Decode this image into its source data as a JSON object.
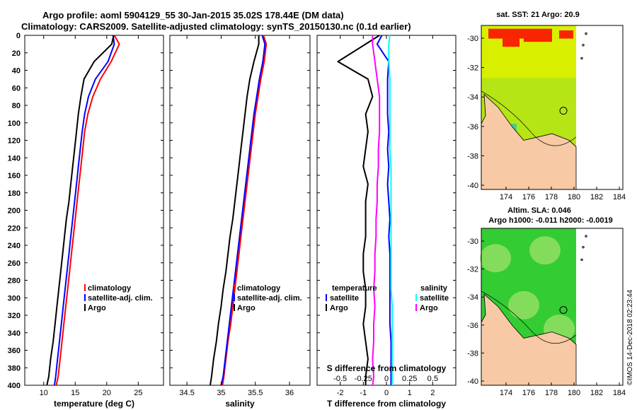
{
  "title_line1": "Argo profile: aoml 5904129_55 30-Jan-2015 35.02S 178.44E (DM data)",
  "title_line2": "Climatology: CARS2009. Satellite-adjusted climatology: synTS_20150130.nc (0.1d earlier)",
  "colors": {
    "climatology": "#ff0000",
    "satellite": "#0000ff",
    "argo": "#000000",
    "salinity_satellite": "#00ffff",
    "salinity_argo": "#ff00ff",
    "land": "#f7c9a4",
    "sst_bg": "#d8f000",
    "sla_bg": "#33cc33"
  },
  "chart_data": [
    {
      "type": "line",
      "id": "temperature",
      "xlabel": "temperature (deg C)",
      "ylabel": "depth",
      "xlim": [
        7,
        29
      ],
      "ylim": [
        0,
        400
      ],
      "y_reversed": true,
      "xticks": [
        "10",
        "15",
        "20",
        "25"
      ],
      "yticks": [
        "0",
        "20",
        "40",
        "60",
        "80",
        "100",
        "120",
        "140",
        "160",
        "180",
        "200",
        "220",
        "240",
        "260",
        "280",
        "300",
        "320",
        "340",
        "360",
        "380",
        "400"
      ],
      "legend": [
        "climatology",
        "satellite-adj. clim.",
        "Argo"
      ],
      "series": [
        {
          "name": "climatology",
          "color_key": "climatology",
          "x": [
            21.2,
            22.0,
            20.7,
            19.0,
            17.8,
            17.0,
            16.5,
            16.2,
            15.9,
            15.6,
            15.3,
            15.0,
            14.7,
            14.4,
            14.1,
            13.8,
            13.5,
            13.2,
            12.9,
            12.6,
            12.3,
            12.0
          ],
          "y": [
            0,
            10,
            30,
            50,
            70,
            90,
            110,
            130,
            150,
            170,
            190,
            210,
            230,
            250,
            270,
            290,
            310,
            330,
            350,
            370,
            390,
            400
          ]
        },
        {
          "name": "satellite-adj. clim.",
          "color_key": "satellite",
          "x": [
            21.0,
            21.2,
            20.2,
            18.2,
            17.1,
            16.5,
            16.1,
            15.8,
            15.5,
            15.2,
            14.9,
            14.6,
            14.3,
            14.0,
            13.7,
            13.4,
            13.1,
            12.8,
            12.5,
            12.2,
            11.9,
            11.7
          ],
          "y": [
            0,
            10,
            30,
            50,
            70,
            90,
            110,
            130,
            150,
            170,
            190,
            210,
            230,
            250,
            270,
            290,
            310,
            330,
            350,
            370,
            390,
            400
          ]
        },
        {
          "name": "Argo",
          "color_key": "argo",
          "x": [
            21.1,
            20.8,
            18.0,
            16.4,
            15.9,
            15.5,
            15.2,
            14.9,
            14.6,
            14.3,
            14.0,
            13.6,
            13.3,
            13.0,
            12.7,
            12.4,
            12.1,
            11.8,
            11.5,
            11.1,
            10.8,
            10.5
          ],
          "y": [
            0,
            10,
            30,
            50,
            70,
            90,
            110,
            130,
            150,
            170,
            190,
            210,
            230,
            250,
            270,
            290,
            310,
            330,
            350,
            370,
            390,
            400
          ]
        }
      ]
    },
    {
      "type": "line",
      "id": "salinity",
      "xlabel": "salinity",
      "xlim": [
        34.25,
        36.3
      ],
      "ylim": [
        0,
        400
      ],
      "y_reversed": true,
      "xticks": [
        "34.5",
        "35",
        "35.5",
        "36"
      ],
      "legend": [
        "climatology",
        "satellite-adj. clim.",
        "Argo"
      ],
      "series": [
        {
          "name": "climatology",
          "color_key": "climatology",
          "x": [
            35.62,
            35.66,
            35.63,
            35.58,
            35.54,
            35.5,
            35.47,
            35.44,
            35.41,
            35.38,
            35.35,
            35.32,
            35.29,
            35.26,
            35.23,
            35.2,
            35.17,
            35.14,
            35.1,
            35.07,
            35.04,
            35.02
          ],
          "y": [
            0,
            10,
            30,
            50,
            70,
            90,
            110,
            130,
            150,
            170,
            190,
            210,
            230,
            250,
            270,
            290,
            310,
            330,
            350,
            370,
            390,
            400
          ]
        },
        {
          "name": "satellite-adj. clim.",
          "color_key": "satellite",
          "x": [
            35.6,
            35.64,
            35.61,
            35.56,
            35.52,
            35.48,
            35.45,
            35.42,
            35.39,
            35.36,
            35.33,
            35.3,
            35.27,
            35.24,
            35.21,
            35.18,
            35.15,
            35.12,
            35.09,
            35.06,
            35.03,
            35.0
          ],
          "y": [
            0,
            10,
            30,
            50,
            70,
            90,
            110,
            130,
            150,
            170,
            190,
            210,
            230,
            250,
            270,
            290,
            310,
            330,
            350,
            370,
            390,
            400
          ]
        },
        {
          "name": "Argo",
          "color_key": "argo",
          "x": [
            35.55,
            35.55,
            35.48,
            35.42,
            35.38,
            35.35,
            35.32,
            35.29,
            35.26,
            35.23,
            35.2,
            35.17,
            35.13,
            35.1,
            35.07,
            35.03,
            35.0,
            34.96,
            34.93,
            34.89,
            34.86,
            34.84
          ],
          "y": [
            0,
            10,
            30,
            50,
            70,
            90,
            110,
            130,
            150,
            170,
            190,
            210,
            230,
            250,
            270,
            290,
            310,
            330,
            350,
            370,
            390,
            400
          ]
        }
      ]
    },
    {
      "type": "line",
      "id": "difference",
      "xlabel": "T difference from climatology",
      "top_axis_label": "S difference from climatology",
      "xlim": [
        -3,
        3
      ],
      "ylim": [
        0,
        400
      ],
      "y_reversed": true,
      "xticks": [
        "-2",
        "-1",
        "0",
        "1",
        "2"
      ],
      "top_ticks": [
        "-0.5",
        "-0.25",
        "0",
        "0.25",
        "0.5"
      ],
      "legend_temperature_title": "temperature",
      "legend_salinity_title": "salinity",
      "legend": [
        "satellite",
        "Argo"
      ],
      "series": [
        {
          "name": "temperature satellite",
          "color_key": "satellite",
          "x": [
            -0.2,
            -0.4,
            0.1,
            0.05,
            0.05,
            0.05,
            0.1,
            0.05,
            0.1,
            0.05,
            0.1,
            0.15,
            0.1,
            0.15,
            0.15,
            0.15,
            0.15,
            0.15,
            0.2,
            0.2,
            0.2,
            0.2
          ],
          "y": [
            0,
            10,
            30,
            50,
            70,
            90,
            110,
            130,
            150,
            170,
            190,
            210,
            230,
            250,
            270,
            290,
            310,
            330,
            350,
            370,
            390,
            400
          ]
        },
        {
          "name": "temperature Argo",
          "color_key": "argo",
          "x": [
            -0.3,
            -0.9,
            -2.1,
            -0.8,
            -0.6,
            -0.9,
            -0.8,
            -0.9,
            -1.0,
            -0.8,
            -0.9,
            -0.9,
            -0.9,
            -1.0,
            -1.0,
            -0.9,
            -0.9,
            -1.0,
            -0.9,
            -0.8,
            -0.9,
            -0.9
          ],
          "y": [
            0,
            10,
            30,
            50,
            70,
            90,
            110,
            130,
            150,
            170,
            190,
            210,
            230,
            250,
            270,
            290,
            310,
            330,
            350,
            370,
            390,
            400
          ]
        },
        {
          "name": "salinity satellite",
          "color_key": "salinity_satellite",
          "x": [
            0.15,
            0.1,
            0.1,
            0.15,
            0.15,
            0.15,
            0.15,
            0.15,
            0.2,
            0.2,
            0.2,
            0.2,
            0.2,
            0.2,
            0.2,
            0.2,
            0.25,
            0.25,
            0.25,
            0.25,
            0.25,
            0.25
          ],
          "y": [
            0,
            10,
            30,
            50,
            70,
            90,
            110,
            130,
            150,
            170,
            190,
            210,
            230,
            250,
            270,
            290,
            310,
            330,
            350,
            370,
            390,
            400
          ]
        },
        {
          "name": "salinity Argo",
          "color_key": "salinity_argo",
          "x": [
            -0.6,
            -0.6,
            -0.5,
            -0.4,
            -0.3,
            -0.3,
            -0.3,
            -0.35,
            -0.35,
            -0.4,
            -0.4,
            -0.45,
            -0.45,
            -0.5,
            -0.5,
            -0.55,
            -0.5,
            -0.55,
            -0.55,
            -0.6,
            -0.55,
            -0.6
          ],
          "y": [
            0,
            10,
            30,
            50,
            70,
            90,
            110,
            130,
            150,
            170,
            190,
            210,
            230,
            250,
            270,
            290,
            310,
            330,
            350,
            370,
            390,
            400
          ]
        }
      ]
    }
  ],
  "maps": {
    "sst": {
      "title": "sat. SST: 21 Argo: 20.9",
      "yticks": [
        "-30",
        "-32",
        "-34",
        "-36",
        "-38",
        "-40"
      ],
      "xticks": [
        "174",
        "176",
        "178",
        "180",
        "182",
        "184"
      ]
    },
    "sla": {
      "title_line1": "Altim. SLA: 0.046",
      "title_line2": "Argo h1000: -0.011 h2000: -0.0019",
      "yticks": [
        "-30",
        "-32",
        "-34",
        "-36",
        "-38",
        "-40"
      ],
      "xticks": [
        "174",
        "176",
        "178",
        "180",
        "182",
        "184"
      ]
    }
  },
  "credit": "©IMOS 14-Dec-2018 02:23:44"
}
